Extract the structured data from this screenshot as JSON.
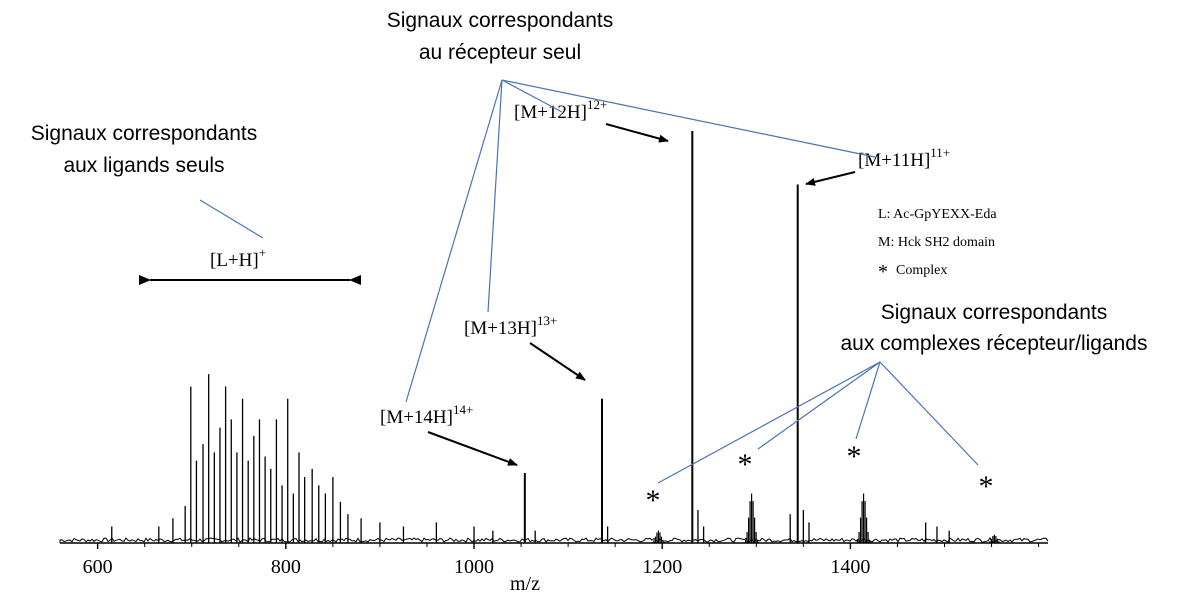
{
  "chart_data": {
    "type": "mass-spectrum",
    "xlabel": "m/z",
    "xlim": [
      560,
      1610
    ],
    "xticks": [
      600,
      800,
      1000,
      1200,
      1400
    ],
    "ylim": [
      0,
      1.0
    ],
    "legend": {
      "placement": "right",
      "entries": [
        "L: Ac-GpYEXX-Eda",
        "M: Hck SH2 domain",
        "Complex"
      ],
      "complex_symbol": "*"
    },
    "peaks": [
      {
        "label": "[M+14H]",
        "charge": "14+",
        "mz": 1054,
        "intensity": 0.17
      },
      {
        "label": "[M+13H]",
        "charge": "13+",
        "mz": 1136,
        "intensity": 0.35
      },
      {
        "label": "[M+12H]",
        "charge": "12+",
        "mz": 1232,
        "intensity": 1.0
      },
      {
        "label": "[M+11H]",
        "charge": "11+",
        "mz": 1344,
        "intensity": 0.87
      }
    ],
    "ligand_region": {
      "label": "[L+H]",
      "charge": "+",
      "from": 650,
      "to": 880
    },
    "complex_peaks": [
      {
        "mz": 1196,
        "intensity": 0.03
      },
      {
        "mz": 1295,
        "intensity": 0.12
      },
      {
        "mz": 1414,
        "intensity": 0.12
      },
      {
        "mz": 1553,
        "intensity": 0.02
      }
    ],
    "ligand_peaks": [
      {
        "mz": 615,
        "intensity": 0.04
      },
      {
        "mz": 665,
        "intensity": 0.04
      },
      {
        "mz": 680,
        "intensity": 0.06
      },
      {
        "mz": 693,
        "intensity": 0.09
      },
      {
        "mz": 699,
        "intensity": 0.38
      },
      {
        "mz": 705,
        "intensity": 0.2
      },
      {
        "mz": 712,
        "intensity": 0.24
      },
      {
        "mz": 718,
        "intensity": 0.41
      },
      {
        "mz": 724,
        "intensity": 0.22
      },
      {
        "mz": 730,
        "intensity": 0.28
      },
      {
        "mz": 736,
        "intensity": 0.38
      },
      {
        "mz": 742,
        "intensity": 0.3
      },
      {
        "mz": 748,
        "intensity": 0.22
      },
      {
        "mz": 754,
        "intensity": 0.35
      },
      {
        "mz": 760,
        "intensity": 0.2
      },
      {
        "mz": 766,
        "intensity": 0.26
      },
      {
        "mz": 772,
        "intensity": 0.3
      },
      {
        "mz": 778,
        "intensity": 0.21
      },
      {
        "mz": 784,
        "intensity": 0.18
      },
      {
        "mz": 790,
        "intensity": 0.3
      },
      {
        "mz": 796,
        "intensity": 0.14
      },
      {
        "mz": 802,
        "intensity": 0.35
      },
      {
        "mz": 808,
        "intensity": 0.12
      },
      {
        "mz": 814,
        "intensity": 0.22
      },
      {
        "mz": 820,
        "intensity": 0.16
      },
      {
        "mz": 828,
        "intensity": 0.18
      },
      {
        "mz": 835,
        "intensity": 0.14
      },
      {
        "mz": 842,
        "intensity": 0.12
      },
      {
        "mz": 850,
        "intensity": 0.16
      },
      {
        "mz": 858,
        "intensity": 0.1
      },
      {
        "mz": 866,
        "intensity": 0.07
      },
      {
        "mz": 880,
        "intensity": 0.06
      },
      {
        "mz": 900,
        "intensity": 0.05
      },
      {
        "mz": 925,
        "intensity": 0.04
      },
      {
        "mz": 960,
        "intensity": 0.05
      },
      {
        "mz": 1000,
        "intensity": 0.04
      },
      {
        "mz": 1020,
        "intensity": 0.03
      },
      {
        "mz": 1065,
        "intensity": 0.03
      },
      {
        "mz": 1142,
        "intensity": 0.04
      },
      {
        "mz": 1238,
        "intensity": 0.08
      },
      {
        "mz": 1244,
        "intensity": 0.04
      },
      {
        "mz": 1336,
        "intensity": 0.07
      },
      {
        "mz": 1350,
        "intensity": 0.08
      },
      {
        "mz": 1356,
        "intensity": 0.05
      },
      {
        "mz": 1480,
        "intensity": 0.05
      },
      {
        "mz": 1492,
        "intensity": 0.04
      },
      {
        "mz": 1505,
        "intensity": 0.03
      }
    ]
  },
  "annotations": {
    "receptor": [
      "Signaux correspondants",
      "au récepteur seul"
    ],
    "ligands": [
      "Signaux correspondants",
      "aux ligands seuls"
    ],
    "complexes": [
      "Signaux correspondants",
      "aux complexes récepteur/ligands"
    ],
    "line_color": "#4a73b5"
  }
}
